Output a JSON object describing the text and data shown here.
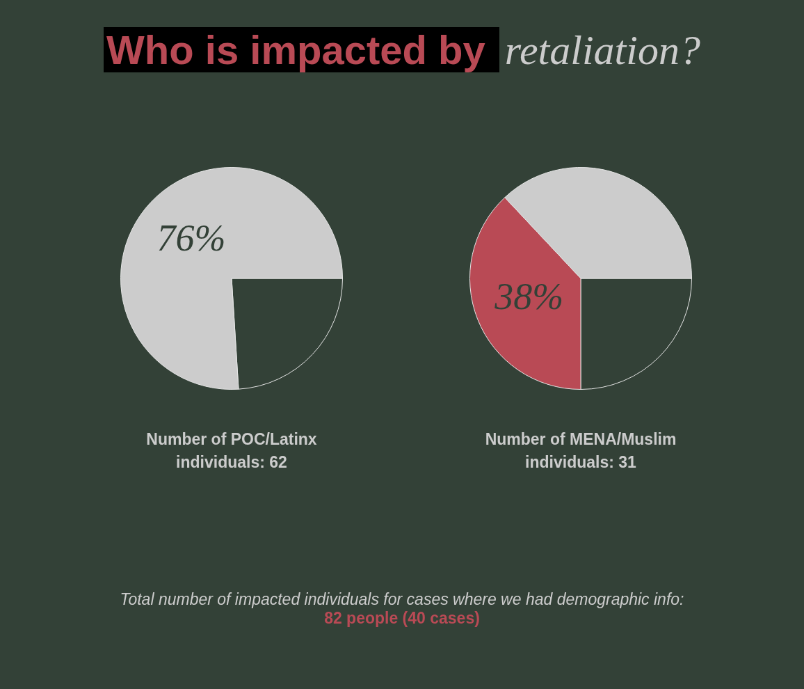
{
  "chart_data": [
    {
      "type": "other",
      "title": "Who is impacted by retaliation?",
      "annotations": [
        "Total number of impacted individuals for cases where we had demographic info:",
        "82 people (40 cases)"
      ]
    },
    {
      "type": "pie",
      "title": "Number of POC/Latinx individuals: 62",
      "categories": [
        null,
        null
      ],
      "values": [
        24,
        76
      ],
      "colors": [
        "#334137",
        "#cccccc"
      ],
      "value_labels": [
        null,
        "76%"
      ]
    },
    {
      "type": "pie",
      "title": "Number of MENA/Muslim individuals: 31",
      "categories": [
        null,
        null,
        null
      ],
      "values": [
        25,
        38,
        37
      ],
      "colors": [
        "#334137",
        "#b94a55",
        "#cccccc"
      ],
      "value_labels": [
        null,
        "38%",
        null
      ]
    }
  ]
}
